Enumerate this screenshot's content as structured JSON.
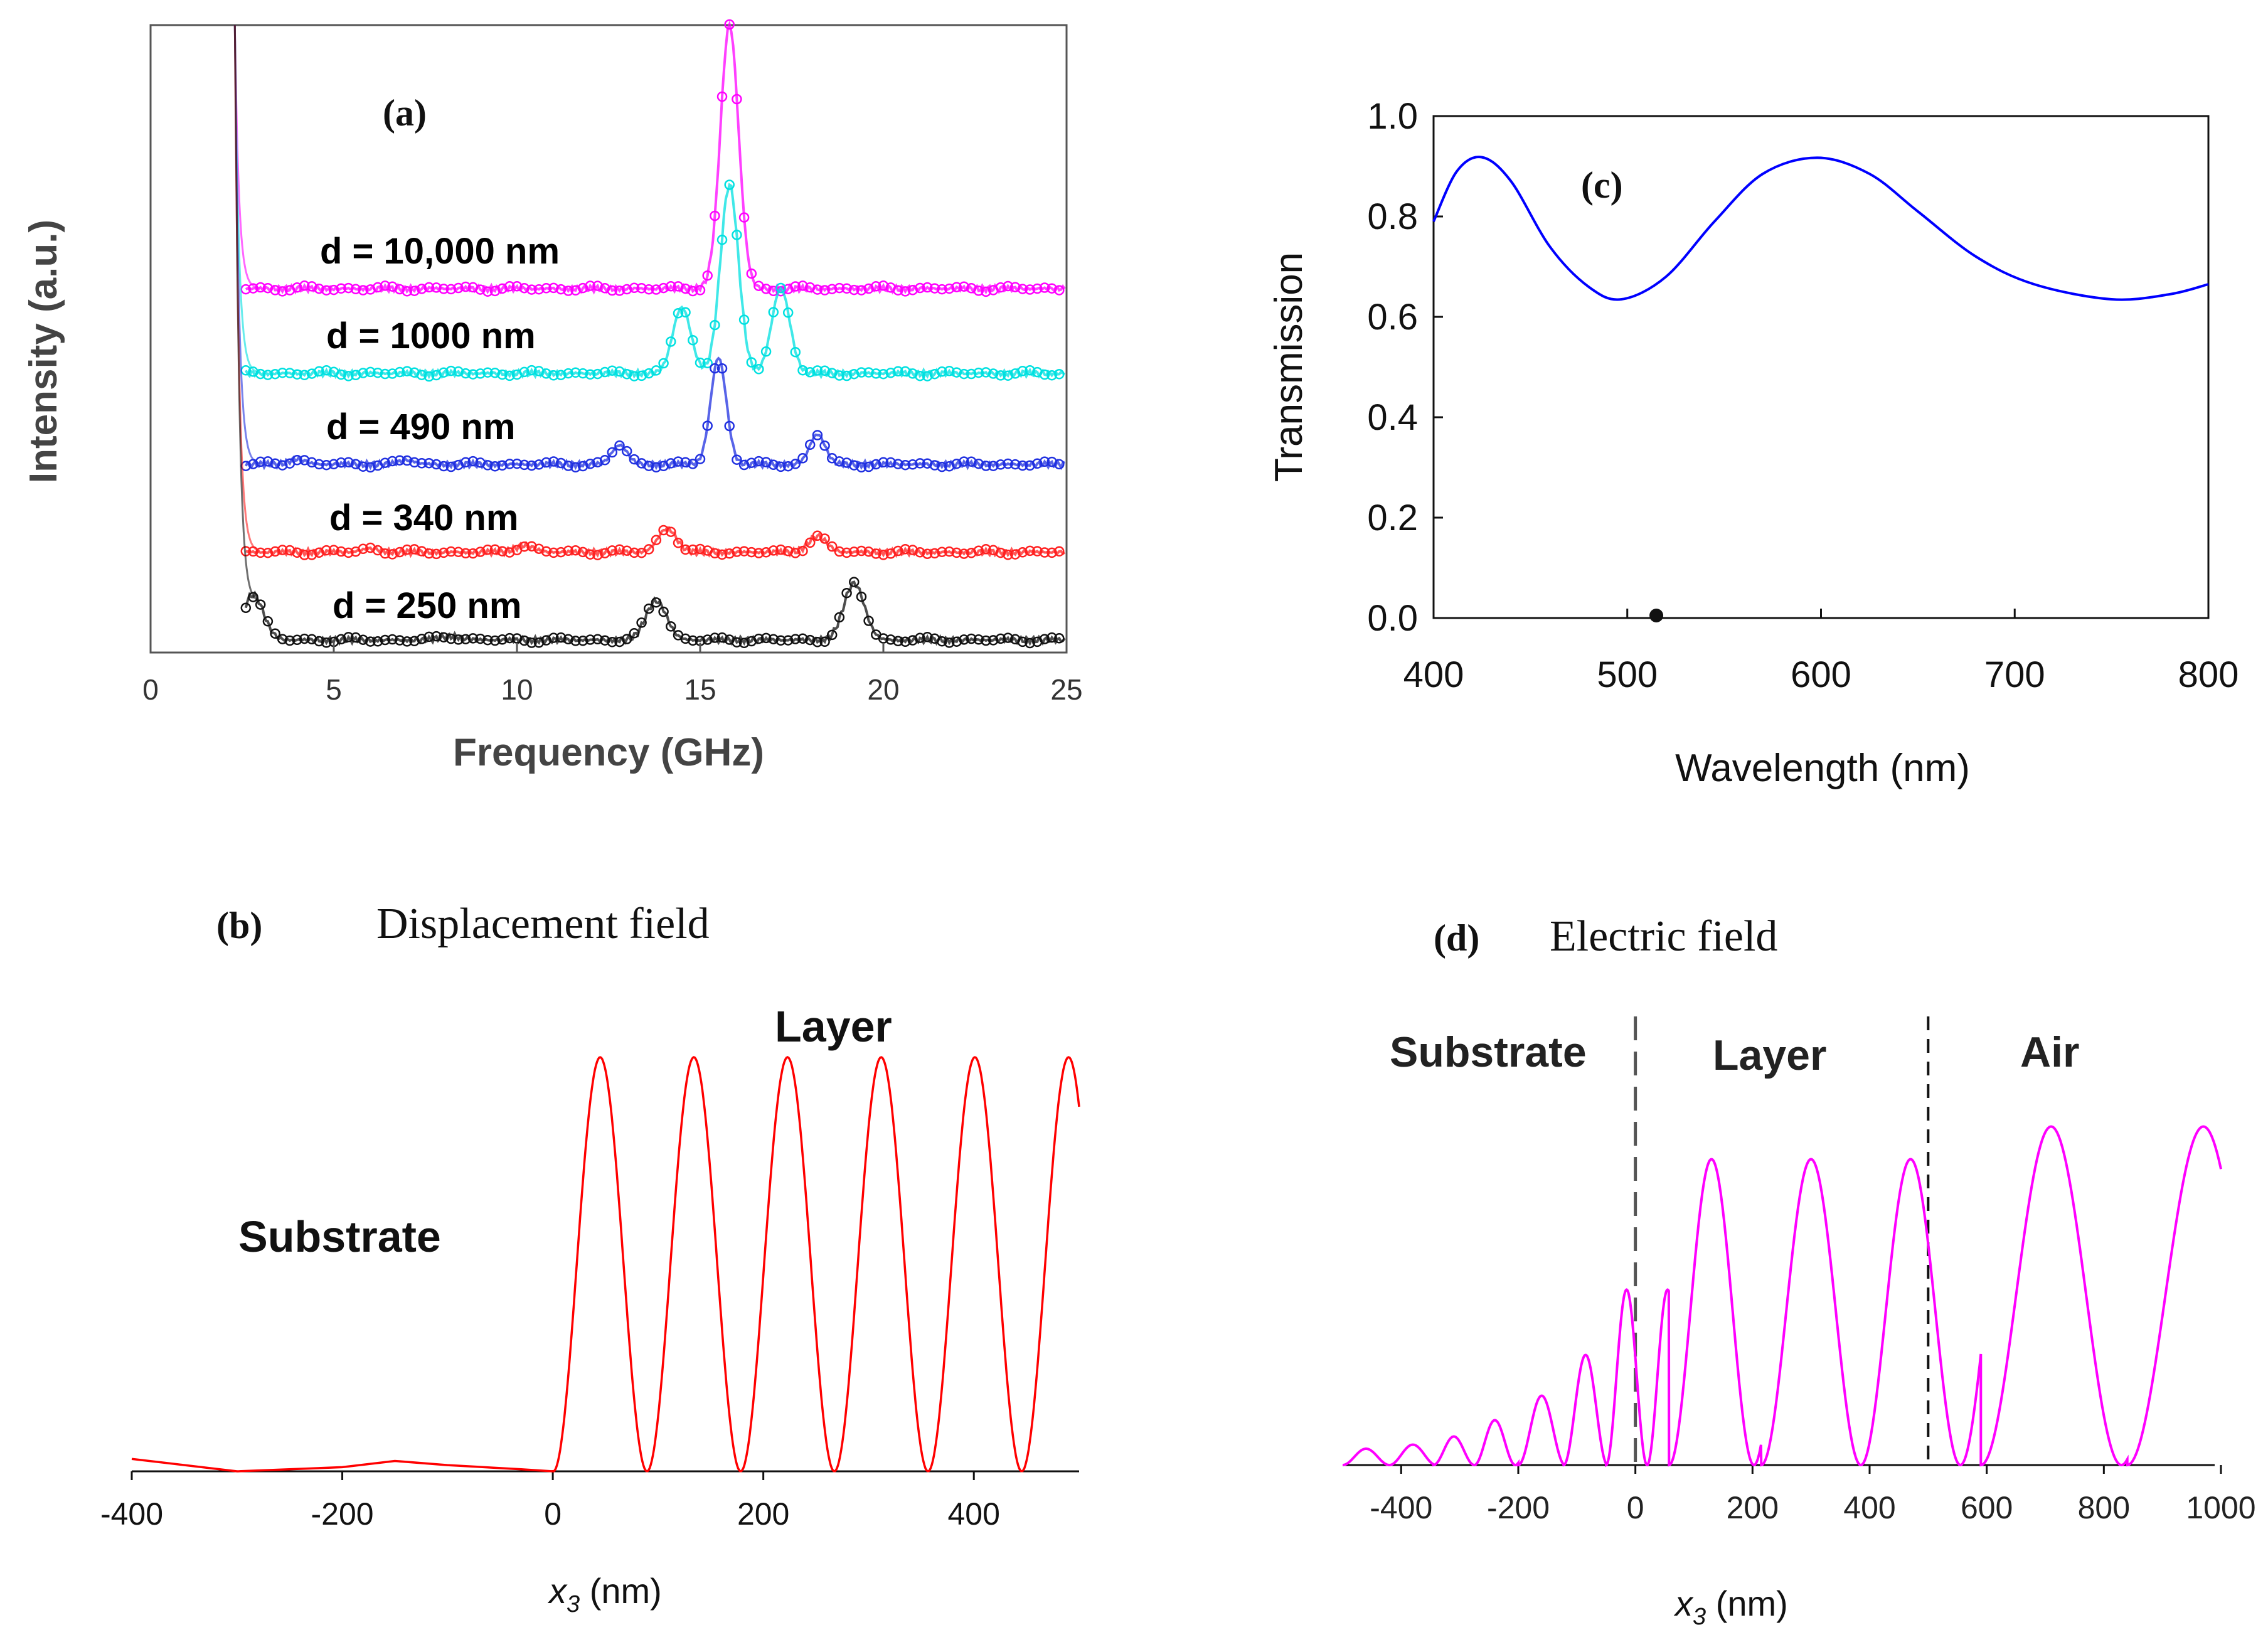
{
  "chart_data": [
    {
      "panel": "(a)",
      "type": "line",
      "xlabel": "Frequency (GHz)",
      "ylabel": "Intensity (a.u.)",
      "xlim": [
        0,
        25
      ],
      "xticks": [
        "0",
        "5",
        "10",
        "15",
        "20",
        "25"
      ],
      "colors": [
        "#ff00ff",
        "#00e0e0",
        "#2030e0",
        "#ff2020",
        "#111111"
      ],
      "series": [
        {
          "name": "d = 10,000 nm",
          "peaks": [
            {
              "x": 15.8,
              "amp": 1.0
            }
          ]
        },
        {
          "name": "d = 1000 nm",
          "peaks": [
            {
              "x": 14.5,
              "amp": 0.35
            },
            {
              "x": 15.8,
              "amp": 1.0
            },
            {
              "x": 17.2,
              "amp": 0.45
            }
          ]
        },
        {
          "name": "d = 490 nm",
          "peaks": [
            {
              "x": 4.0,
              "amp": 0.05
            },
            {
              "x": 7.0,
              "amp": 0.04
            },
            {
              "x": 12.8,
              "amp": 0.18
            },
            {
              "x": 15.5,
              "amp": 1.0
            },
            {
              "x": 18.2,
              "amp": 0.28
            }
          ]
        },
        {
          "name": "d = 340 nm",
          "peaks": [
            {
              "x": 6.0,
              "amp": 0.06
            },
            {
              "x": 10.2,
              "amp": 0.12
            },
            {
              "x": 14.1,
              "amp": 0.42
            },
            {
              "x": 18.2,
              "amp": 0.28
            }
          ]
        },
        {
          "name": "d = 250 nm",
          "peaks": [
            {
              "x": 2.8,
              "amp": 0.6
            },
            {
              "x": 8.2,
              "amp": 0.05
            },
            {
              "x": 13.8,
              "amp": 0.52
            },
            {
              "x": 19.2,
              "amp": 0.75
            }
          ]
        }
      ]
    },
    {
      "panel": "(c)",
      "type": "line",
      "xlabel": "Wavelength (nm)",
      "ylabel": "Transmission",
      "xlim": [
        400,
        800
      ],
      "ylim": [
        0,
        1.0
      ],
      "xticks": [
        "400",
        "500",
        "600",
        "700",
        "800"
      ],
      "yticks": [
        "0.0",
        "0.2",
        "0.4",
        "0.6",
        "0.8",
        "1.0"
      ],
      "color": "#0000ff",
      "series": [
        {
          "x": [
            400,
            412,
            425,
            440,
            460,
            480,
            497,
            520,
            545,
            570,
            598,
            625,
            650,
            680,
            710,
            750,
            780,
            800
          ],
          "y": [
            0.79,
            0.89,
            0.918,
            0.87,
            0.74,
            0.66,
            0.635,
            0.68,
            0.79,
            0.885,
            0.917,
            0.885,
            0.81,
            0.72,
            0.665,
            0.635,
            0.645,
            0.665
          ]
        }
      ],
      "marker": {
        "x": 515,
        "y": 0.0
      }
    },
    {
      "panel": "(b)",
      "type": "line",
      "title": "Displacement field",
      "xlabel": "x3 (nm)",
      "xlim": [
        -400,
        500
      ],
      "xticks": [
        "-400",
        "-200",
        "0",
        "200",
        "400"
      ],
      "color": "#ff0000",
      "regions": [
        "Substrate",
        "Layer"
      ],
      "series": [
        {
          "substrate_x": [
            -400,
            -300,
            -200,
            -150,
            -100,
            -30,
            0
          ],
          "substrate_y": [
            0.03,
            0.0,
            0.01,
            0.025,
            0.015,
            0.005,
            0.0
          ],
          "layer_period_nm": 89,
          "layer_first_peak_nm": 45,
          "layer_amplitude": 1.0
        }
      ]
    },
    {
      "panel": "(d)",
      "type": "line",
      "title": "Electric field",
      "xlabel": "x3 (nm)",
      "xlim": [
        -500,
        1000
      ],
      "xticks": [
        "-400",
        "-200",
        "0",
        "200",
        "400",
        "600",
        "800",
        "1000"
      ],
      "color": "#ff00ff",
      "regions": [
        "Substrate",
        "Layer",
        "Air"
      ],
      "boundaries": [
        0,
        500
      ],
      "series": [
        {
          "substrate_peaks_x": [
            -460,
            -380,
            -310,
            -240,
            -160,
            -85,
            -15
          ],
          "substrate_peaks_y": [
            0.04,
            0.05,
            0.07,
            0.11,
            0.17,
            0.27,
            0.43
          ],
          "layer_peaks_x": [
            130,
            300,
            470
          ],
          "layer_peaks_y": [
            0.75,
            0.75,
            0.75
          ],
          "air_peaks_x": [
            710,
            970
          ],
          "air_peaks_y": [
            0.83,
            0.83
          ]
        }
      ]
    }
  ]
}
